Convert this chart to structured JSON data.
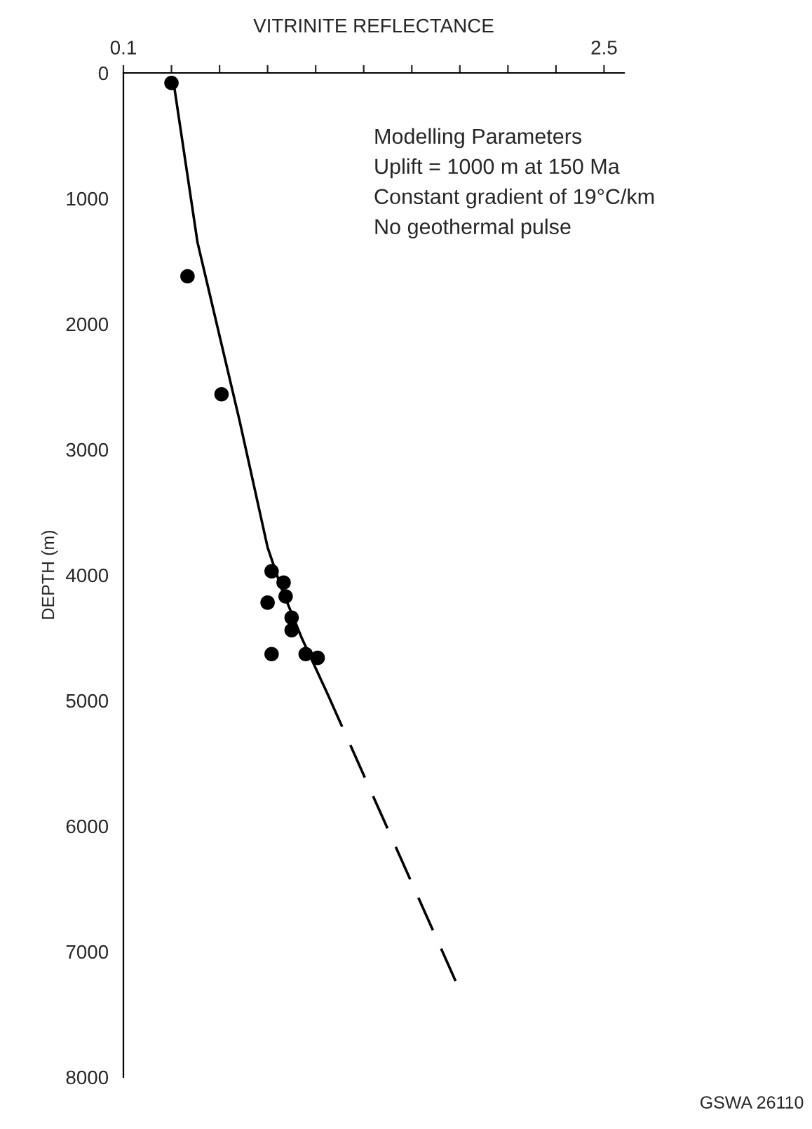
{
  "chart_data": {
    "type": "scatter",
    "xlabel": "VITRINITE REFLECTANCE",
    "ylabel": "DEPTH (m)",
    "xlim": [
      0.1,
      2.6
    ],
    "ylim": [
      8000,
      0
    ],
    "xticks": [
      0.1,
      {
        "value": 0.34,
        "label": null
      },
      {
        "value": 0.58,
        "label": null
      },
      {
        "value": 0.82,
        "label": null
      },
      {
        "value": 1.06,
        "label": null
      },
      {
        "value": 1.3,
        "label": null
      },
      {
        "value": 1.54,
        "label": null
      },
      {
        "value": 1.78,
        "label": null
      },
      {
        "value": 2.02,
        "label": null
      },
      {
        "value": 2.26,
        "label": null
      },
      2.5
    ],
    "yticks": [
      0,
      1000,
      2000,
      3000,
      4000,
      5000,
      6000,
      7000,
      8000
    ],
    "grid": false,
    "legend": false,
    "series": [
      {
        "marker": "circle",
        "color": "#000000",
        "x": [
          0.34,
          0.42,
          0.59,
          0.84,
          0.9,
          0.91,
          0.82,
          0.94,
          0.94,
          0.84,
          1.01,
          1.07
        ],
        "values": [
          80,
          1620,
          2560,
          3970,
          4060,
          4170,
          4220,
          4340,
          4440,
          4630,
          4630,
          4660
        ]
      },
      {
        "type": "line",
        "color": "#000000",
        "line_style": "solid",
        "x": [
          0.35,
          0.47,
          0.68,
          0.82,
          0.89,
          0.99,
          1.12
        ],
        "values": [
          70,
          1350,
          2770,
          3780,
          4110,
          4500,
          4950
        ]
      },
      {
        "type": "line",
        "color": "#000000",
        "line_style": "dashed",
        "x": [
          1.12,
          1.76
        ],
        "values": [
          4950,
          7240
        ]
      }
    ],
    "annotations": [
      "Modelling Parameters",
      "Uplift = 1000 m at 150 Ma",
      "Constant gradient of 19°C/km",
      "No geothermal pulse",
      "GSWA 26110"
    ]
  }
}
